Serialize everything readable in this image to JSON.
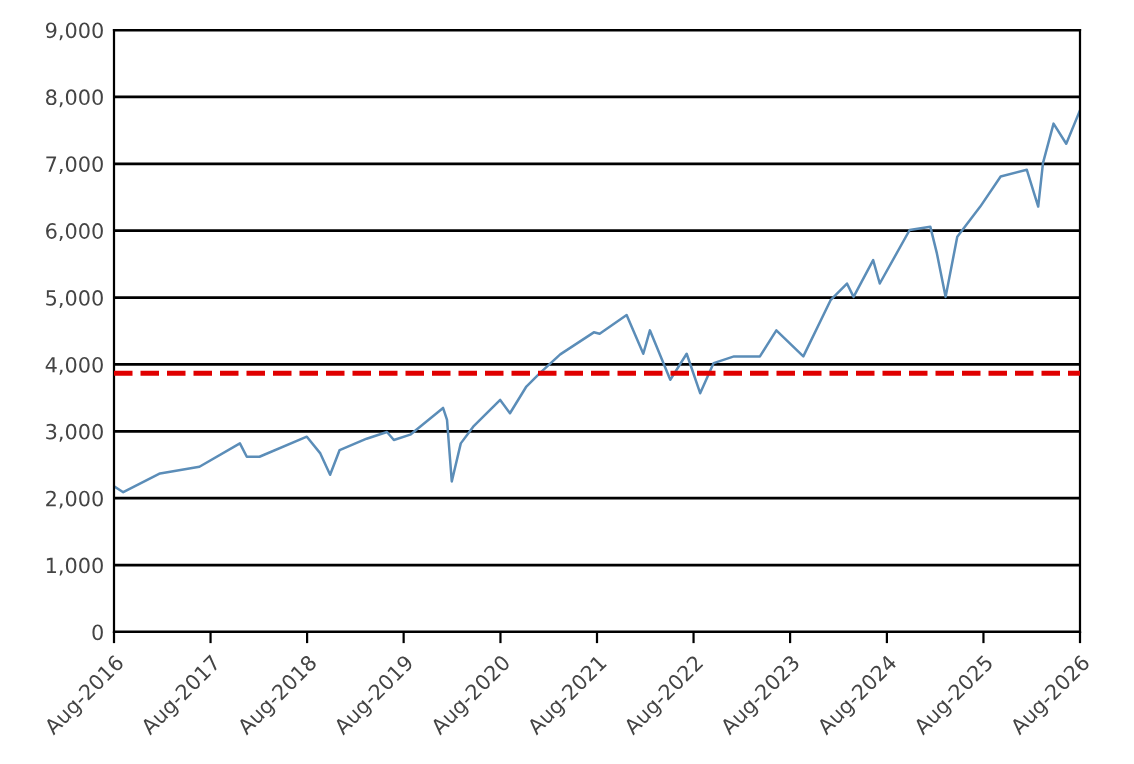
{
  "chart_data": {
    "type": "line",
    "x": [
      "2016-08-01",
      "2016-09-05",
      "2017-01-22",
      "2017-06-20",
      "2017-11-20",
      "2017-12-16",
      "2018-02-02",
      "2018-07-31",
      "2018-09-20",
      "2018-10-27",
      "2018-12-02",
      "2019-03-14",
      "2019-05-30",
      "2019-06-25",
      "2019-08-26",
      "2019-12-28",
      "2020-01-12",
      "2020-01-30",
      "2020-03-04",
      "2020-04-20",
      "2020-07-31",
      "2020-09-06",
      "2020-11-07",
      "2020-12-28",
      "2021-03-15",
      "2021-07-20",
      "2021-08-11",
      "2021-11-21",
      "2022-01-23",
      "2022-02-17",
      "2022-05-05",
      "2022-07-06",
      "2022-08-26",
      "2022-10-16",
      "2023-01-01",
      "2023-04-09",
      "2023-06-10",
      "2023-09-20",
      "2024-01-01",
      "2024-03-03",
      "2024-03-28",
      "2024-06-10",
      "2024-07-05",
      "2024-10-26",
      "2025-01-12",
      "2025-02-06",
      "2025-03-11",
      "2025-04-24",
      "2025-07-20",
      "2025-10-05",
      "2026-01-12",
      "2026-02-24",
      "2026-03-14",
      "2026-04-23",
      "2026-06-10",
      "2026-08-01"
    ],
    "series": [
      {
        "color": "#5b8db8",
        "values": [
          2180,
          2090,
          2370,
          2470,
          2820,
          2620,
          2620,
          2920,
          2670,
          2350,
          2720,
          2890,
          2990,
          2870,
          2950,
          3350,
          3170,
          2250,
          2820,
          3070,
          3470,
          3270,
          3670,
          3870,
          4150,
          4480,
          4460,
          4740,
          4160,
          4510,
          3770,
          4160,
          3570,
          4020,
          4120,
          4120,
          4510,
          4120,
          4960,
          5210,
          5010,
          5560,
          5210,
          6010,
          6060,
          5660,
          5010,
          5910,
          6360,
          6810,
          6910,
          6360,
          7010,
          7600,
          7300,
          7800
        ]
      }
    ],
    "xlim": [
      "2016-08-01",
      "2026-08-01"
    ],
    "xticks": [
      {
        "value": "2016-08-01",
        "label": "Aug-2016"
      },
      {
        "value": "2017-08-01",
        "label": "Aug-2017"
      },
      {
        "value": "2018-08-01",
        "label": "Aug-2018"
      },
      {
        "value": "2019-08-01",
        "label": "Aug-2019"
      },
      {
        "value": "2020-08-01",
        "label": "Aug-2020"
      },
      {
        "value": "2021-08-01",
        "label": "Aug-2021"
      },
      {
        "value": "2022-08-01",
        "label": "Aug-2022"
      },
      {
        "value": "2023-08-01",
        "label": "Aug-2023"
      },
      {
        "value": "2024-08-01",
        "label": "Aug-2024"
      },
      {
        "value": "2025-08-01",
        "label": "Aug-2025"
      },
      {
        "value": "2026-08-01",
        "label": "Aug-2026"
      }
    ],
    "ylim": [
      0,
      9000
    ],
    "yticks": [
      {
        "value": 0,
        "label": "0"
      },
      {
        "value": 1000,
        "label": "1,000"
      },
      {
        "value": 2000,
        "label": "2,000"
      },
      {
        "value": 3000,
        "label": "3,000"
      },
      {
        "value": 4000,
        "label": "4,000"
      },
      {
        "value": 5000,
        "label": "5,000"
      },
      {
        "value": 6000,
        "label": "6,000"
      },
      {
        "value": 7000,
        "label": "7,000"
      },
      {
        "value": 8000,
        "label": "8,000"
      },
      {
        "value": 9000,
        "label": "9,000"
      }
    ],
    "grid": "y",
    "ref_lines": [
      {
        "axis": "y",
        "value": 3870,
        "color": "#e00000",
        "line_style": "dashed"
      }
    ]
  }
}
